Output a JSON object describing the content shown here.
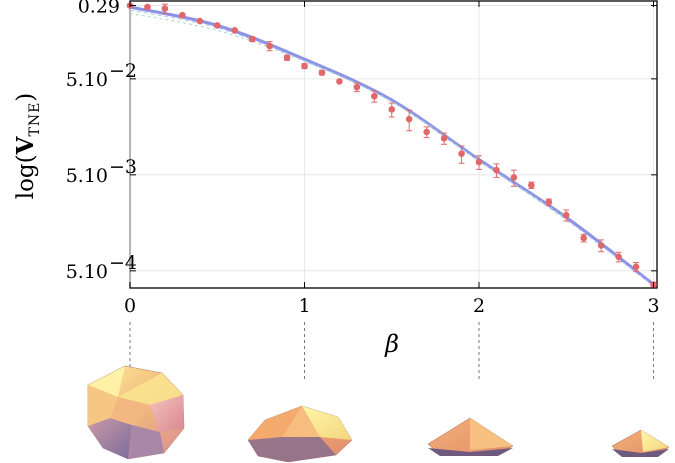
{
  "chart_data": {
    "type": "scatter",
    "title": "",
    "xlabel": "β",
    "ylabel": {
      "prefix": "log(",
      "bold": "V",
      "subscript": "TNE",
      "suffix": ")"
    },
    "xlim": [
      0,
      3.02
    ],
    "ylim_log10": [
      -3.48,
      -0.49
    ],
    "y_scale": "log",
    "grid": true,
    "x_ticks": [
      {
        "value": 0,
        "label": "0"
      },
      {
        "value": 1,
        "label": "1"
      },
      {
        "value": 2,
        "label": "2"
      },
      {
        "value": 3,
        "label": "3"
      }
    ],
    "y_ticks": [
      {
        "value": 0.29,
        "label": "0.29",
        "sup": ""
      },
      {
        "value": 0.05,
        "label": "5.10",
        "sup": "−2"
      },
      {
        "value": 0.005,
        "label": "5.10",
        "sup": "−3"
      },
      {
        "value": 0.0005,
        "label": "5.10",
        "sup": "−4"
      }
    ],
    "series": [
      {
        "kind": "points",
        "color": "#e0686a",
        "x": [
          0,
          0.1,
          0.2,
          0.3,
          0.4,
          0.5,
          0.6,
          0.7,
          0.8,
          0.9,
          1.0,
          1.1,
          1.2,
          1.3,
          1.4,
          1.5,
          1.6,
          1.7,
          1.8,
          1.9,
          2.0,
          2.1,
          2.2,
          2.3,
          2.4,
          2.5,
          2.6,
          2.7,
          2.8,
          2.9,
          3.0
        ],
        "y": [
          0.29,
          0.28,
          0.27,
          0.23,
          0.2,
          0.18,
          0.16,
          0.13,
          0.11,
          0.083,
          0.068,
          0.058,
          0.047,
          0.041,
          0.033,
          0.024,
          0.019,
          0.014,
          0.012,
          0.0083,
          0.0068,
          0.0056,
          0.0047,
          0.0039,
          0.0026,
          0.0019,
          0.0011,
          0.00092,
          0.0007,
          0.00055,
          0.00036
        ],
        "err": [
          0.01,
          0.01,
          0.03,
          0.008,
          0,
          0.005,
          0,
          0.007,
          0.012,
          0.005,
          0.004,
          0.003,
          0,
          0.0042,
          0.0044,
          0.004,
          0.0046,
          0.0018,
          0.0016,
          0.0017,
          0.0011,
          0.0009,
          0.0009,
          0.0003,
          0.0002,
          0.00025,
          0.0001,
          0.00013,
          8e-05,
          6e-05,
          2e-05
        ]
      },
      {
        "kind": "fit",
        "color": "#7f86e3",
        "width": 3.2,
        "x": [
          0,
          0.5,
          1.0,
          1.5,
          2.0,
          2.5,
          3.0
        ],
        "y": [
          0.28,
          0.18,
          0.08,
          0.03,
          0.0072,
          0.0018,
          0.00036
        ]
      },
      {
        "kind": "fit",
        "color": "#b8c4ef",
        "width": 1.2,
        "dash": "4,3",
        "x": [
          0,
          0.5,
          1.0,
          1.5,
          2.0,
          2.5,
          3.0
        ],
        "y": [
          0.26,
          0.17,
          0.077,
          0.029,
          0.007,
          0.0017,
          0.00035
        ]
      },
      {
        "kind": "fit",
        "color": "#9fd6c4",
        "width": 1.0,
        "dash": "3,3",
        "x": [
          0,
          0.5,
          1.0,
          1.5,
          2.0,
          2.5
        ],
        "y": [
          0.24,
          0.16,
          0.076,
          0.029,
          0.007,
          0.0018
        ]
      }
    ],
    "polytopes": [
      {
        "beta": 0,
        "kind": "sphere"
      },
      {
        "beta": 1,
        "kind": "dome"
      },
      {
        "beta": 2,
        "kind": "pyramid"
      },
      {
        "beta": 3,
        "kind": "small-pyramid"
      }
    ]
  }
}
